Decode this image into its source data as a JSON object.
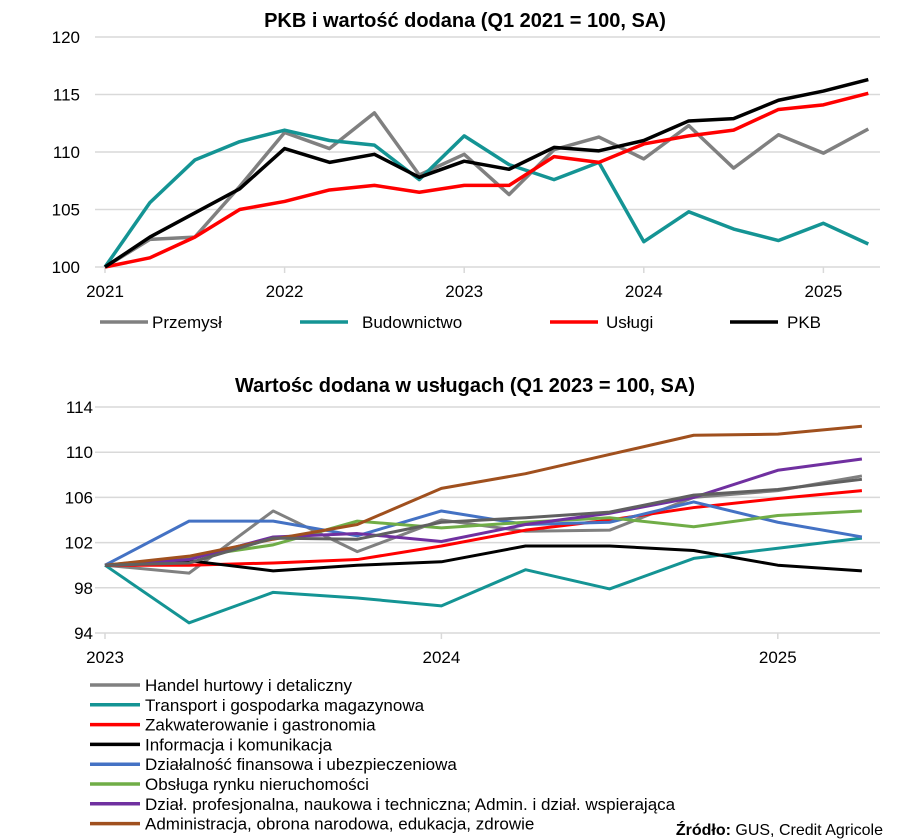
{
  "chart_data": [
    {
      "type": "line",
      "title": "PKB i wartość dodana (Q1 2021 = 100, SA)",
      "xlabel": "",
      "ylabel": "",
      "x": [
        "2021Q1",
        "2021Q2",
        "2021Q3",
        "2021Q4",
        "2022Q1",
        "2022Q2",
        "2022Q3",
        "2022Q4",
        "2023Q1",
        "2023Q2",
        "2023Q3",
        "2023Q4",
        "2024Q1",
        "2024Q2",
        "2024Q3",
        "2024Q4",
        "2025Q1",
        "2025Q2"
      ],
      "x_tick_labels": [
        "2021",
        "2022",
        "2023",
        "2024",
        "2025"
      ],
      "y_tick_labels": [
        "100",
        "105",
        "110",
        "115",
        "120"
      ],
      "ylim": [
        100,
        120
      ],
      "grid": true,
      "legend_position": "bottom",
      "series": [
        {
          "name": "Przemysł",
          "color": "#808080",
          "values": [
            100,
            102.4,
            102.6,
            107.0,
            111.7,
            110.3,
            113.4,
            108.0,
            109.8,
            106.3,
            110.2,
            111.3,
            109.4,
            112.3,
            108.6,
            111.5,
            109.9,
            112.0
          ]
        },
        {
          "name": "Budownictwo",
          "color": "#149494",
          "values": [
            100,
            105.6,
            109.3,
            110.9,
            111.9,
            111.0,
            110.6,
            107.6,
            111.4,
            108.9,
            107.6,
            109.1,
            102.2,
            104.8,
            103.3,
            102.3,
            103.8,
            102.0
          ]
        },
        {
          "name": "Usługi",
          "color": "#ff0000",
          "values": [
            100,
            100.8,
            102.6,
            105.0,
            105.7,
            106.7,
            107.1,
            106.5,
            107.1,
            107.1,
            109.6,
            109.1,
            110.7,
            111.4,
            111.9,
            113.7,
            114.1,
            115.1
          ]
        },
        {
          "name": "PKB",
          "color": "#000000",
          "values": [
            100,
            102.6,
            104.7,
            106.8,
            110.3,
            109.1,
            109.8,
            107.8,
            109.2,
            108.5,
            110.4,
            110.1,
            111.0,
            112.7,
            112.9,
            114.5,
            115.3,
            116.3
          ]
        }
      ]
    },
    {
      "type": "line",
      "title": "Wartośc dodana w usługach (Q1 2023 = 100, SA)",
      "xlabel": "",
      "ylabel": "",
      "x": [
        "2023Q1",
        "2023Q2",
        "2023Q3",
        "2023Q4",
        "2024Q1",
        "2024Q2",
        "2024Q3",
        "2024Q4",
        "2025Q1",
        "2025Q2"
      ],
      "x_tick_labels": [
        "2023",
        "2024",
        "2025"
      ],
      "y_tick_labels": [
        "94",
        "98",
        "102",
        "106",
        "110",
        "114"
      ],
      "ylim": [
        94,
        114
      ],
      "grid": true,
      "legend_position": "bottom",
      "series": [
        {
          "name": "Handel hurtowy i detaliczny",
          "color": "#808080",
          "values": [
            100,
            99.3,
            104.8,
            101.2,
            104.0,
            103.0,
            103.1,
            106.0,
            106.6,
            107.9
          ]
        },
        {
          "name": "Transport i gospodarka magazynowa",
          "color": "#149494",
          "values": [
            100,
            94.9,
            97.6,
            97.1,
            96.4,
            99.6,
            97.9,
            100.6,
            101.5,
            102.4
          ]
        },
        {
          "name": "Zakwaterowanie i gastronomia",
          "color": "#ff0000",
          "values": [
            100,
            100.0,
            100.2,
            100.5,
            101.7,
            103.1,
            104.0,
            105.1,
            105.9,
            106.6
          ]
        },
        {
          "name": "Informacja i komunikacja",
          "color": "#000000",
          "values": [
            100,
            100.4,
            99.5,
            100.0,
            100.3,
            101.7,
            101.7,
            101.3,
            100.0,
            99.5
          ]
        },
        {
          "name": "Działalność finansowa i ubezpieczeniowa",
          "color": "#4472c4",
          "values": [
            100,
            103.9,
            103.9,
            102.6,
            104.8,
            103.6,
            103.8,
            105.6,
            103.8,
            102.5
          ]
        },
        {
          "name": "Obsługa rynku nieruchomości",
          "color": "#70ad47",
          "values": [
            100,
            100.7,
            101.8,
            103.9,
            103.3,
            103.8,
            104.2,
            103.4,
            104.4,
            104.8
          ]
        },
        {
          "name": "Dział. profesjonalna, naukowa i techniczna; Admin. i dział. wspierająca",
          "color": "#7030a0",
          "values": [
            100,
            100.5,
            102.5,
            102.8,
            102.1,
            103.6,
            104.6,
            106.0,
            108.4,
            109.4
          ]
        },
        {
          "name": "Administracja, obrona narodowa, edukacja, zdrowie",
          "color": "#a0501e",
          "values": [
            100,
            100.8,
            102.3,
            103.6,
            106.8,
            108.1,
            109.8,
            111.5,
            111.6,
            112.3
          ]
        },
        {
          "color": "#606060",
          "values": [
            100,
            100.2,
            102.4,
            102.3,
            103.8,
            104.2,
            104.7,
            106.2,
            106.7,
            107.6
          ]
        }
      ]
    }
  ],
  "source": {
    "label": "Źródło:",
    "text": " GUS, Credit Agricole"
  }
}
